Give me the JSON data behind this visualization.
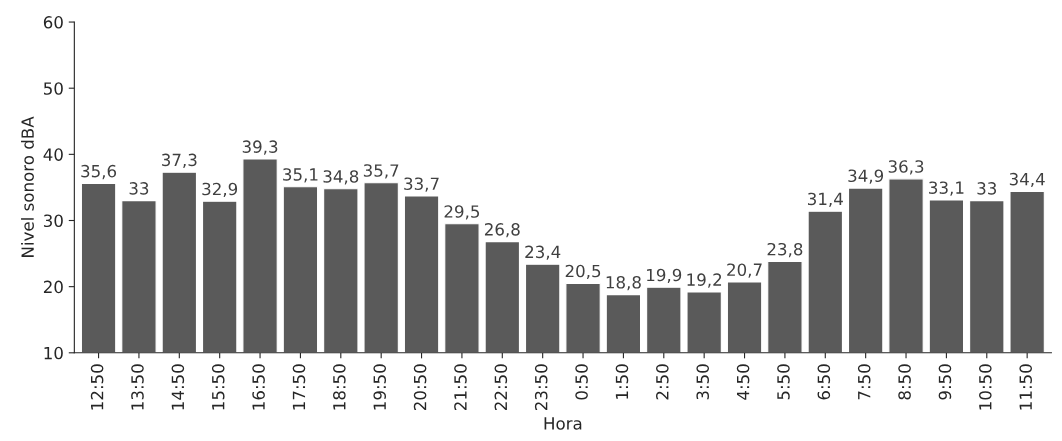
{
  "chart_data": {
    "type": "bar",
    "xlabel": "Hora",
    "ylabel": "Nivel sonoro dBA",
    "categories": [
      "12:50",
      "13:50",
      "14:50",
      "15:50",
      "16:50",
      "17:50",
      "18:50",
      "19:50",
      "20:50",
      "21:50",
      "22:50",
      "23:50",
      "0:50",
      "1:50",
      "2:50",
      "3:50",
      "4:50",
      "5:50",
      "6:50",
      "7:50",
      "8:50",
      "9:50",
      "10:50",
      "11:50"
    ],
    "values": [
      35.6,
      33,
      37.3,
      32.9,
      39.3,
      35.1,
      34.8,
      35.7,
      33.7,
      29.5,
      26.8,
      23.4,
      20.5,
      18.8,
      19.9,
      19.2,
      20.7,
      23.8,
      31.4,
      34.9,
      36.3,
      33.1,
      33,
      34.4
    ],
    "value_labels": [
      "35,6",
      "33",
      "37,3",
      "32,9",
      "39,3",
      "35,1",
      "34,8",
      "35,7",
      "33,7",
      "29,5",
      "26,8",
      "23,4",
      "20,5",
      "18,8",
      "19,9",
      "19,2",
      "20,7",
      "23,8",
      "31,4",
      "34,9",
      "36,3",
      "33,1",
      "33",
      "34,4"
    ],
    "color": "#5a5a5a",
    "ylim": [
      10,
      60
    ],
    "yticks": [
      10,
      20,
      30,
      40,
      50,
      60
    ],
    "grid": false,
    "legend": false
  }
}
